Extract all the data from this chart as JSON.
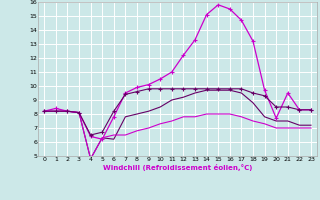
{
  "xlabel": "Windchill (Refroidissement éolien,°C)",
  "bg_color": "#cce8e8",
  "grid_color": "#ffffff",
  "line_color_bright": "#cc00cc",
  "line_color_dark": "#660066",
  "xlim": [
    -0.5,
    23.5
  ],
  "ylim": [
    5,
    16
  ],
  "xticks": [
    0,
    1,
    2,
    3,
    4,
    5,
    6,
    7,
    8,
    9,
    10,
    11,
    12,
    13,
    14,
    15,
    16,
    17,
    18,
    19,
    20,
    21,
    22,
    23
  ],
  "yticks": [
    5,
    6,
    7,
    8,
    9,
    10,
    11,
    12,
    13,
    14,
    15,
    16
  ],
  "s1_x": [
    0,
    1,
    2,
    3,
    4,
    5,
    6,
    7,
    8,
    9,
    10,
    11,
    12,
    13,
    14,
    15,
    16,
    17,
    18,
    19,
    20,
    21,
    22,
    23
  ],
  "s1_y": [
    8.2,
    8.4,
    8.2,
    8.1,
    6.4,
    6.2,
    7.8,
    9.5,
    9.9,
    10.1,
    10.5,
    11.0,
    12.2,
    13.3,
    15.1,
    15.8,
    15.5,
    14.7,
    13.2,
    9.7,
    7.7,
    9.5,
    8.3,
    8.3
  ],
  "s2_x": [
    0,
    1,
    2,
    3,
    4,
    5,
    6,
    7,
    8,
    9,
    10,
    11,
    12,
    13,
    14,
    15,
    16,
    17,
    18,
    19,
    20,
    21,
    22,
    23
  ],
  "s2_y": [
    8.2,
    8.2,
    8.2,
    8.1,
    6.5,
    6.7,
    8.2,
    9.4,
    9.6,
    9.8,
    9.8,
    9.8,
    9.8,
    9.8,
    9.8,
    9.8,
    9.8,
    9.8,
    9.5,
    9.3,
    8.5,
    8.5,
    8.3,
    8.3
  ],
  "s3_x": [
    0,
    1,
    2,
    3,
    4,
    5,
    6,
    7,
    8,
    9,
    10,
    11,
    12,
    13,
    14,
    15,
    16,
    17,
    18,
    19,
    20,
    21,
    22,
    23
  ],
  "s3_y": [
    8.2,
    8.2,
    8.2,
    8.1,
    4.8,
    6.3,
    6.2,
    7.8,
    8.0,
    8.2,
    8.5,
    9.0,
    9.2,
    9.5,
    9.7,
    9.7,
    9.7,
    9.5,
    8.8,
    7.8,
    7.5,
    7.5,
    7.2,
    7.2
  ],
  "s4_x": [
    0,
    1,
    2,
    3,
    4,
    5,
    6,
    7,
    8,
    9,
    10,
    11,
    12,
    13,
    14,
    15,
    16,
    17,
    18,
    19,
    20,
    21,
    22,
    23
  ],
  "s4_y": [
    8.2,
    8.2,
    8.2,
    8.1,
    4.8,
    6.3,
    6.5,
    6.5,
    6.8,
    7.0,
    7.3,
    7.5,
    7.8,
    7.8,
    8.0,
    8.0,
    8.0,
    7.8,
    7.5,
    7.3,
    7.0,
    7.0,
    7.0,
    7.0
  ]
}
